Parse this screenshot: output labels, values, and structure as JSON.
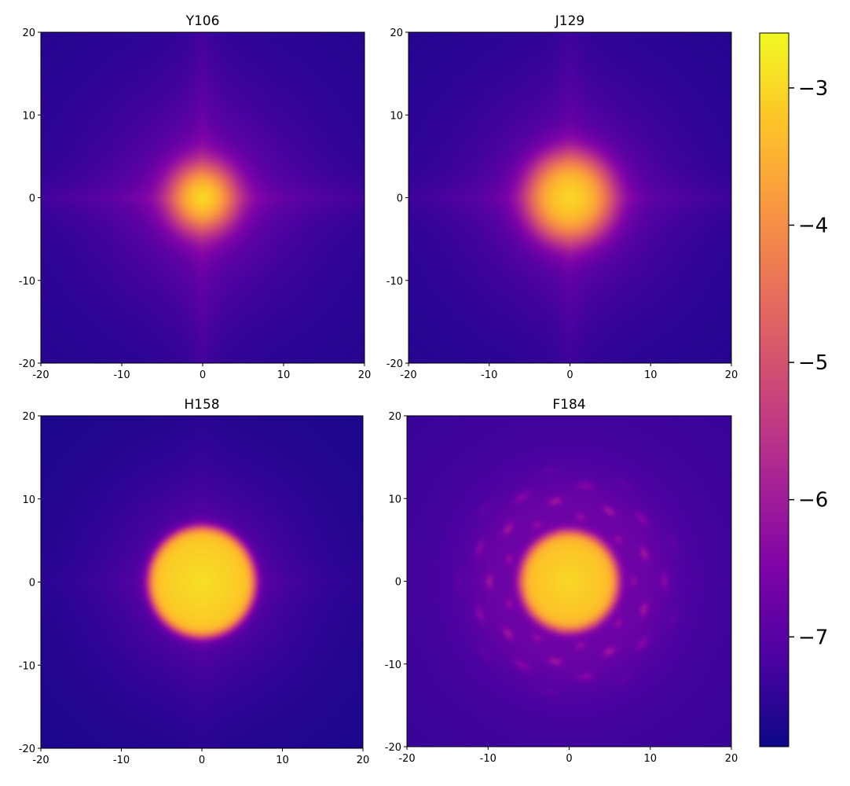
{
  "chart_data": {
    "type": "heatmap",
    "colormap": "plasma",
    "shared_axes": {
      "xlim": [
        -20,
        20
      ],
      "ylim": [
        -20,
        20
      ],
      "xticks": [
        -20,
        -10,
        0,
        10,
        20
      ],
      "yticks": [
        -20,
        -10,
        0,
        10,
        20
      ],
      "grid": false
    },
    "panels": [
      {
        "title": "Y106",
        "pattern": "cross",
        "core_radius": 3.6,
        "core_peak": -2.9,
        "background": -7.6,
        "cross_strength": 0.55
      },
      {
        "title": "J129",
        "pattern": "cross",
        "core_radius": 5.0,
        "core_peak": -3.0,
        "background": -7.6,
        "cross_strength": 0.45
      },
      {
        "title": "H158",
        "pattern": "disk",
        "core_radius": 6.6,
        "core_peak": -2.9,
        "background": -7.7,
        "cross_strength": 0.15
      },
      {
        "title": "F184",
        "pattern": "speckle",
        "core_radius": 6.0,
        "core_peak": -3.0,
        "background": -7.4,
        "cross_strength": 0.0
      }
    ],
    "colorbar": {
      "vmin": -7.8,
      "vmax": -2.6,
      "ticks": [
        -3,
        -4,
        -5,
        -6,
        -7
      ],
      "tick_labels": [
        "−3",
        "−4",
        "−5",
        "−6",
        "−7"
      ]
    }
  }
}
